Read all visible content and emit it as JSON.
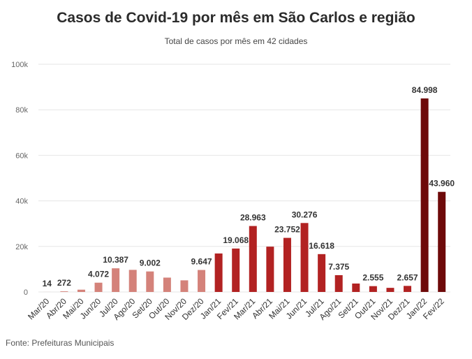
{
  "chart_data": {
    "type": "bar",
    "title": "Casos de Covid-19 por mês em São Carlos e região",
    "subtitle": "Total de casos por mês em 42 cidades",
    "source": "Fonte: Prefeituras Municipais",
    "xlabel": "",
    "ylabel": "",
    "ylim": [
      0,
      100000
    ],
    "grid": true,
    "y_ticks": [
      {
        "value": 0,
        "label": "0"
      },
      {
        "value": 20000,
        "label": "20k"
      },
      {
        "value": 40000,
        "label": "40k"
      },
      {
        "value": 60000,
        "label": "60k"
      },
      {
        "value": 80000,
        "label": "80k"
      },
      {
        "value": 100000,
        "label": "100k"
      }
    ],
    "categories": [
      "Mar/20",
      "Abr/20",
      "Mai/20",
      "Jun/20",
      "Jul/20",
      "Ago/20",
      "Set/20",
      "Out/20",
      "Nov/20",
      "Dez/20",
      "Jan/21",
      "Fev/21",
      "Mar/21",
      "Abr/21",
      "Mai/21",
      "Jun/21",
      "Jul/21",
      "Ago/21",
      "Set/21",
      "Out/21",
      "Nov/21",
      "Dez/21",
      "Jan/22",
      "Fev/22"
    ],
    "values": [
      14,
      272,
      1000,
      4072,
      10387,
      9700,
      9002,
      6300,
      5100,
      9647,
      16900,
      19068,
      28963,
      19900,
      23752,
      30276,
      16618,
      7375,
      3700,
      2555,
      1800,
      2657,
      84998,
      43960
    ],
    "data_labels": [
      "14",
      "272",
      "",
      "4.072",
      "10.387",
      "",
      "9.002",
      "",
      "",
      "9.647",
      "",
      "19.068",
      "28.963",
      "",
      "23.752",
      "30.276",
      "16.618",
      "7.375",
      "",
      "2.555",
      "",
      "2.657",
      "84.998",
      "43.960"
    ],
    "colors": [
      "#d4827a",
      "#d4827a",
      "#d4827a",
      "#d4827a",
      "#d4827a",
      "#d4827a",
      "#d4827a",
      "#d4827a",
      "#d4827a",
      "#d4827a",
      "#b22222",
      "#b22222",
      "#b22222",
      "#b22222",
      "#b22222",
      "#b22222",
      "#b22222",
      "#b22222",
      "#b22222",
      "#b22222",
      "#b22222",
      "#b22222",
      "#6e0a0a",
      "#6e0a0a"
    ]
  }
}
